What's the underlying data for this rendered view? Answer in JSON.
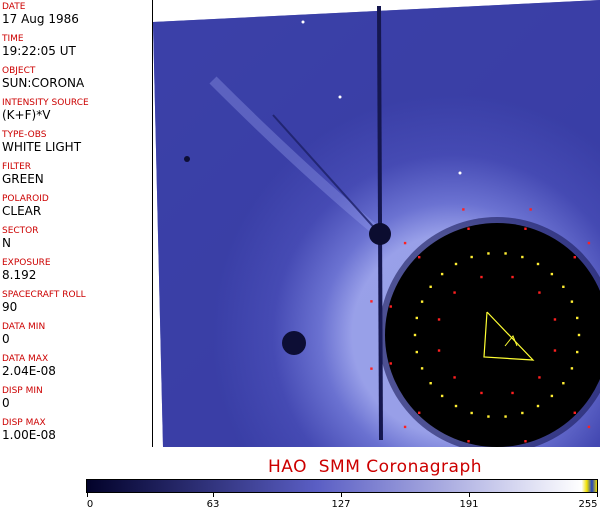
{
  "fields": [
    {
      "label": "DATE",
      "value": "17 Aug 1986"
    },
    {
      "label": "TIME",
      "value": "19:22:05 UT"
    },
    {
      "label": "OBJECT",
      "value": "SUN:CORONA"
    },
    {
      "label": "INTENSITY SOURCE",
      "value": "(K+F)*V"
    },
    {
      "label": "TYPE-OBS",
      "value": "WHITE LIGHT"
    },
    {
      "label": "FILTER",
      "value": "GREEN"
    },
    {
      "label": "POLAROID",
      "value": "CLEAR"
    },
    {
      "label": "SECTOR",
      "value": "N"
    },
    {
      "label": "EXPOSURE",
      "value": "8.192"
    },
    {
      "label": "SPACECRAFT ROLL",
      "value": "90"
    },
    {
      "label": "DATA MIN",
      "value": "0"
    },
    {
      "label": "DATA MAX",
      "value": "2.04E-08"
    },
    {
      "label": "DISP MIN",
      "value": "0"
    },
    {
      "label": "DISP MAX",
      "value": "1.00E-08"
    }
  ],
  "footer_title": "HAO  SMM Coronagraph",
  "colorbar": {
    "ticks": [
      "0",
      "63",
      "127",
      "191",
      "255"
    ],
    "tick_values": [
      0,
      63,
      127,
      191,
      255
    ],
    "range": [
      0,
      255
    ],
    "colors": {
      "dark": "#02022a",
      "mid": "#5a5ec4",
      "light": "#ffffff",
      "label": "#cc0000"
    }
  }
}
